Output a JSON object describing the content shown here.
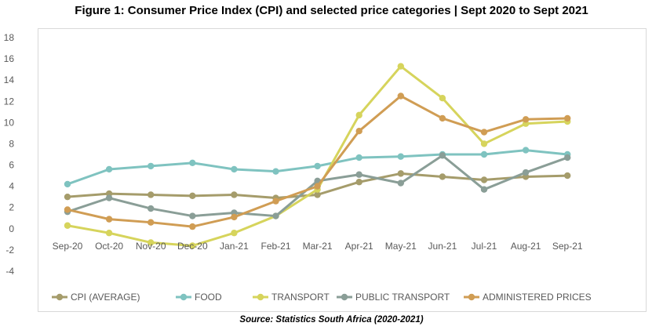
{
  "chart_data": {
    "type": "line",
    "title": "Figure 1: Consumer Price Index (CPI) and selected price categories | Sept 2020  to Sept 2021",
    "source": "Source: Statistics South Africa (2020-2021)",
    "categories": [
      "Sep-20",
      "Oct-20",
      "Nov-20",
      "Dec-20",
      "Jan-21",
      "Feb-21",
      "Mar-21",
      "Apr-21",
      "May-21",
      "Jun-21",
      "Jul-21",
      "Aug-21",
      "Sep-21"
    ],
    "ylim": [
      -4,
      18
    ],
    "yticks": [
      -4,
      -2,
      0,
      2,
      4,
      6,
      8,
      10,
      12,
      14,
      16,
      18
    ],
    "grid": false,
    "legend_position": "bottom",
    "series": [
      {
        "name": "CPI (AVERAGE)",
        "color": "#a59c6b",
        "values": [
          3.0,
          3.3,
          3.2,
          3.1,
          3.2,
          2.9,
          3.2,
          4.4,
          5.2,
          4.9,
          4.6,
          4.9,
          5.0
        ]
      },
      {
        "name": "FOOD",
        "color": "#7fc3c0",
        "values": [
          4.2,
          5.6,
          5.9,
          6.2,
          5.6,
          5.4,
          5.9,
          6.7,
          6.8,
          7.0,
          7.0,
          7.4,
          7.0
        ]
      },
      {
        "name": "TRANSPORT",
        "color": "#d6d45c",
        "values": [
          0.3,
          -0.4,
          -1.3,
          -1.6,
          -0.4,
          1.2,
          3.7,
          10.7,
          15.3,
          12.3,
          8.0,
          9.9,
          10.1
        ]
      },
      {
        "name": "PUBLIC TRANSPORT",
        "color": "#8a9e97",
        "values": [
          1.6,
          2.9,
          1.9,
          1.2,
          1.5,
          1.2,
          4.5,
          5.1,
          4.3,
          6.9,
          3.7,
          5.3,
          6.7
        ]
      },
      {
        "name": "ADMINISTERED PRICES",
        "color": "#d09d54",
        "values": [
          1.8,
          0.9,
          0.6,
          0.2,
          1.1,
          2.6,
          4.0,
          9.2,
          12.5,
          10.4,
          9.1,
          10.3,
          10.4
        ]
      }
    ]
  }
}
